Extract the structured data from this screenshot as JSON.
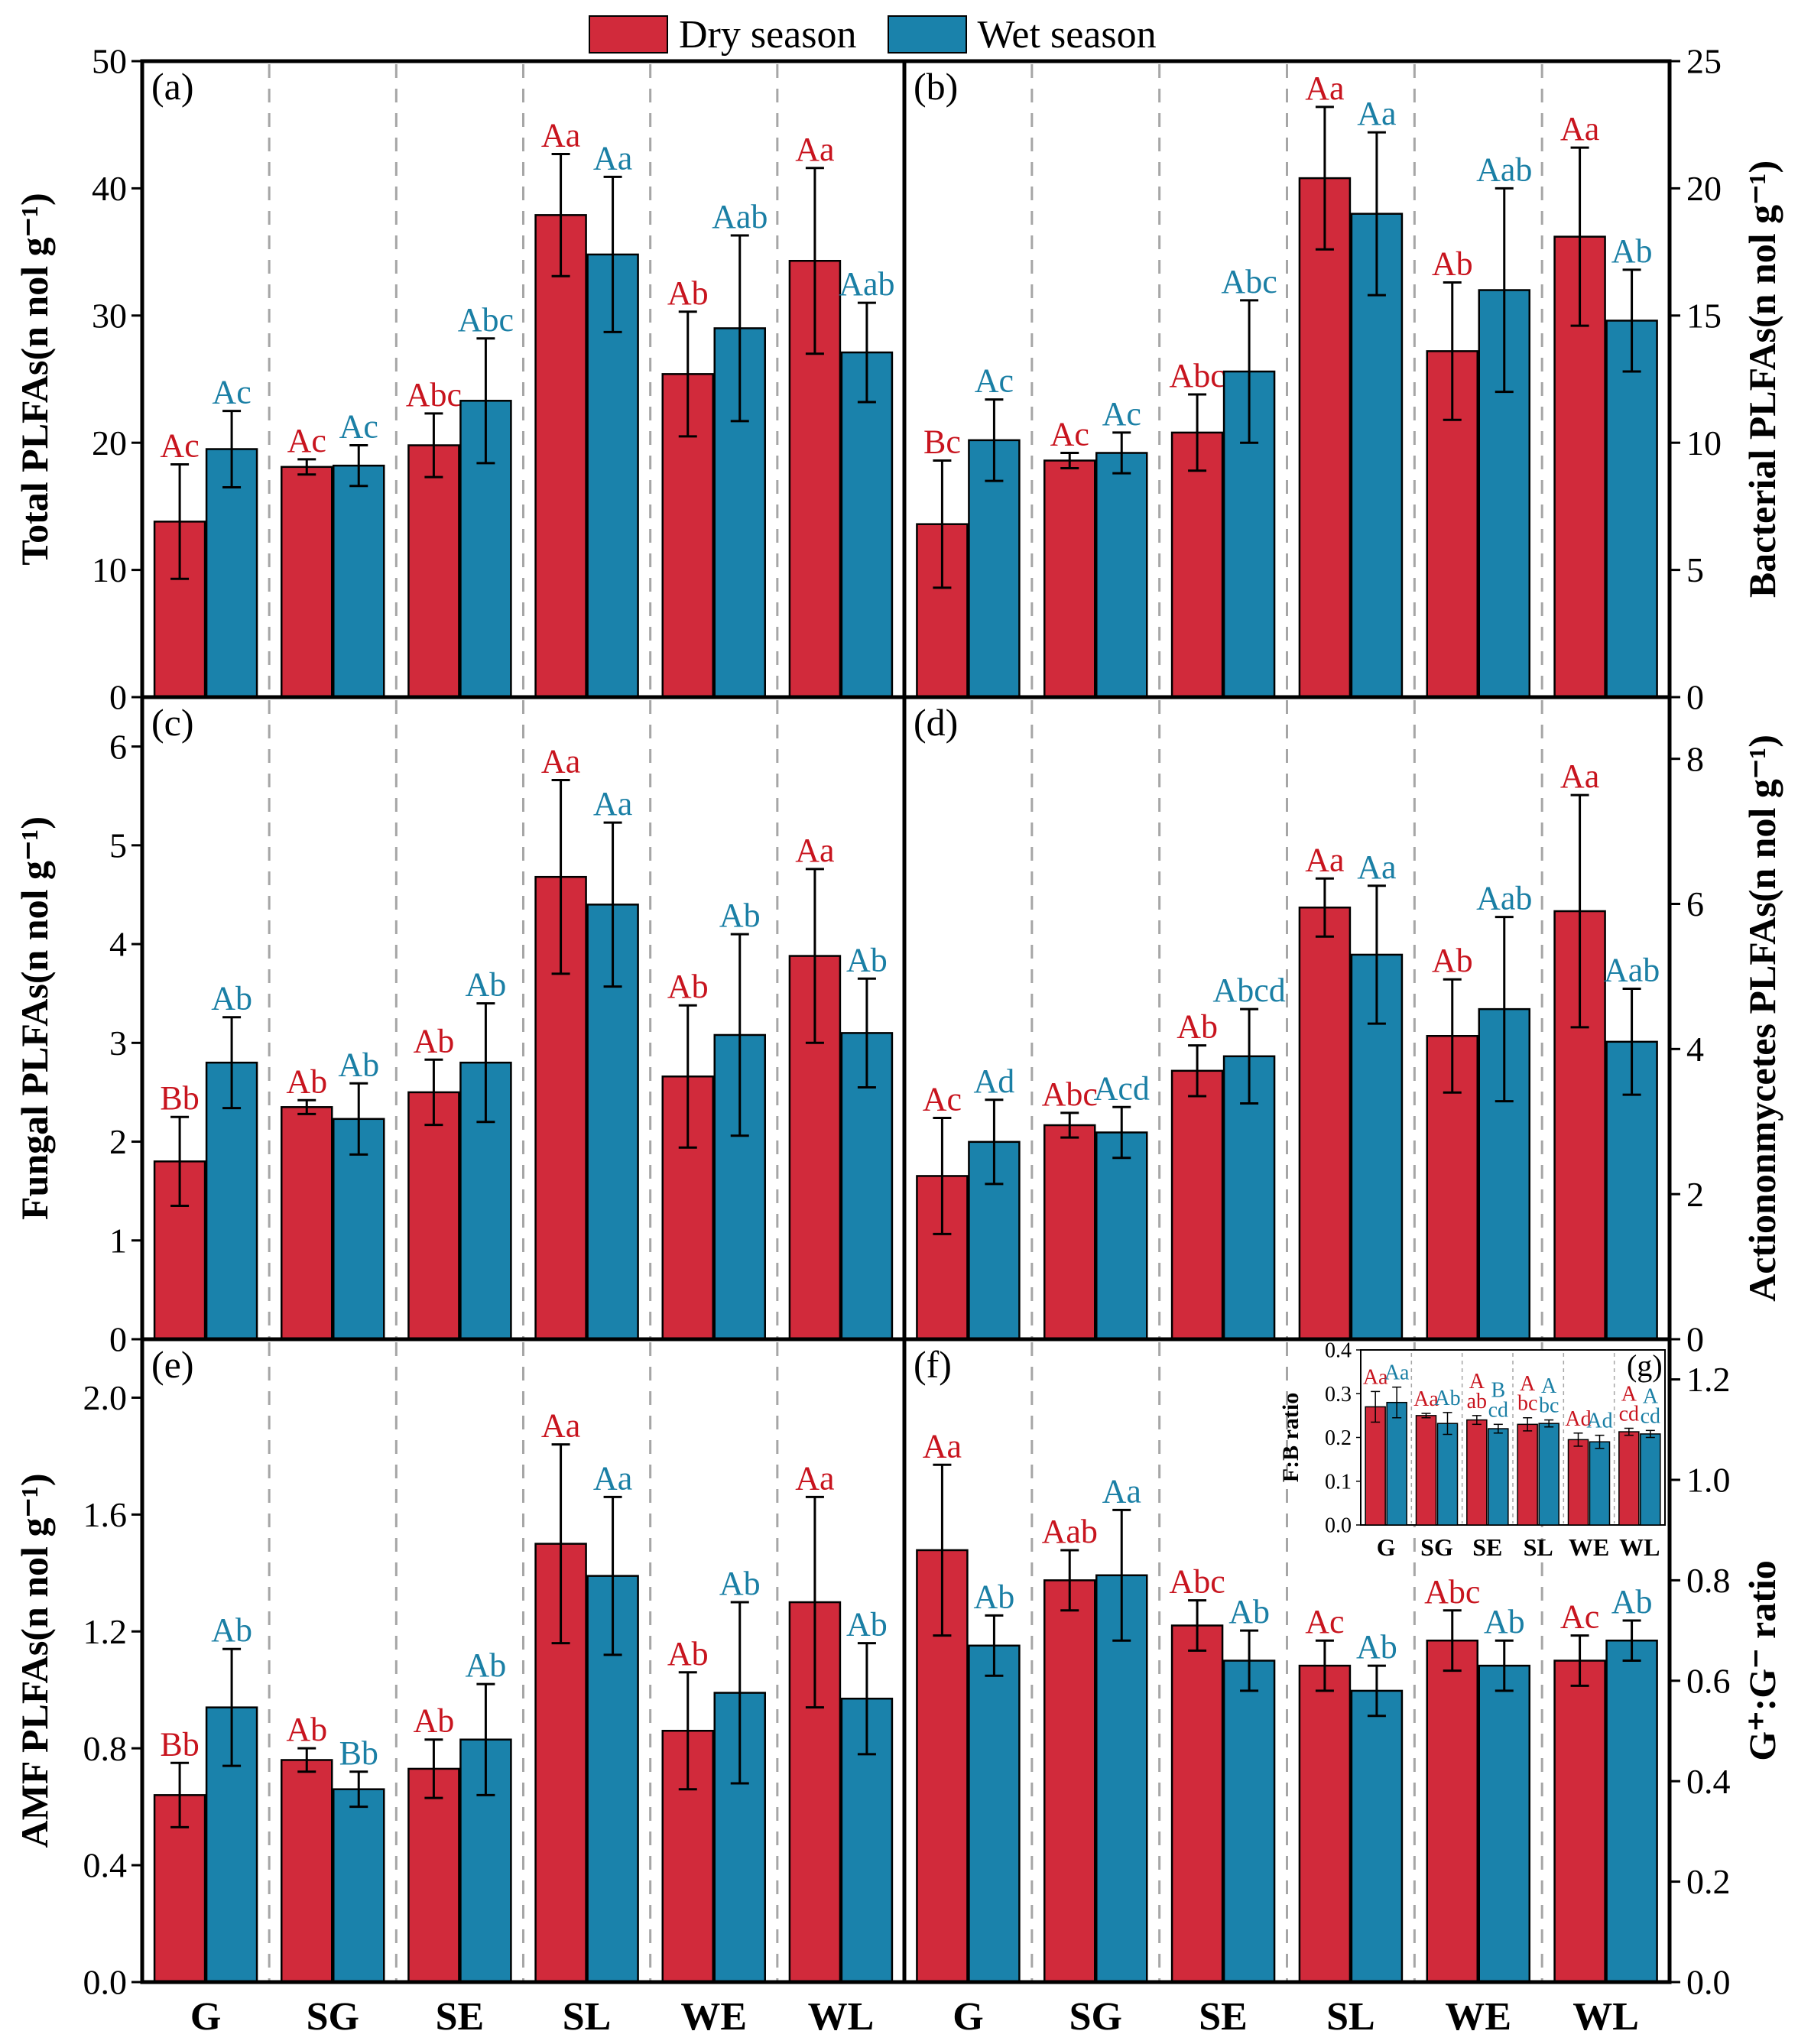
{
  "legend": {
    "dry_label": "Dry  season",
    "wet_label": "Wet season"
  },
  "colors": {
    "dry": "#d12a3b",
    "wet": "#1a82ab",
    "dry_text": "#c8141e",
    "wet_text": "#1a7fa5"
  },
  "categories": [
    "G",
    "SG",
    "SE",
    "SL",
    "WE",
    "WL"
  ],
  "chart_data": [
    {
      "panel": "a",
      "type": "bar",
      "ylabel": "Total PLFAs(n nol g⁻¹)",
      "ylim": [
        0,
        50
      ],
      "yticks": [
        0,
        10,
        20,
        30,
        40,
        50
      ],
      "axis_side": "left",
      "categories": [
        "G",
        "SG",
        "SE",
        "SL",
        "WE",
        "WL"
      ],
      "series": [
        {
          "name": "Dry season",
          "values": [
            13.8,
            18.1,
            19.8,
            37.9,
            25.4,
            34.3
          ],
          "errors": [
            4.5,
            0.6,
            2.5,
            4.8,
            4.9,
            7.3
          ],
          "letters": [
            "Ac",
            "Ac",
            "Abc",
            "Aa",
            "Ab",
            "Aa"
          ]
        },
        {
          "name": "Wet season",
          "values": [
            19.5,
            18.2,
            23.3,
            34.8,
            29.0,
            27.1
          ],
          "errors": [
            3.0,
            1.6,
            4.9,
            6.1,
            7.3,
            3.9
          ],
          "letters": [
            "Ac",
            "Ac",
            "Abc",
            "Aa",
            "Aab",
            "Aab"
          ]
        }
      ]
    },
    {
      "panel": "b",
      "type": "bar",
      "ylabel": "Bacterial PLFAs(n nol g⁻¹)",
      "ylim": [
        0,
        25
      ],
      "yticks": [
        0,
        5,
        10,
        15,
        20,
        25
      ],
      "axis_side": "right",
      "categories": [
        "G",
        "SG",
        "SE",
        "SL",
        "WE",
        "WL"
      ],
      "series": [
        {
          "name": "Dry season",
          "values": [
            6.8,
            9.3,
            10.4,
            20.4,
            13.6,
            18.1
          ],
          "errors": [
            2.5,
            0.3,
            1.5,
            2.8,
            2.7,
            3.5
          ],
          "letters": [
            "Bc",
            "Ac",
            "Abc",
            "Aa",
            "Ab",
            "Aa"
          ]
        },
        {
          "name": "Wet season",
          "values": [
            10.1,
            9.6,
            12.8,
            19.0,
            16.0,
            14.8
          ],
          "errors": [
            1.6,
            0.8,
            2.8,
            3.2,
            4.0,
            2.0
          ],
          "letters": [
            "Ac",
            "Ac",
            "Abc",
            "Aa",
            "Aab",
            "Ab"
          ]
        }
      ]
    },
    {
      "panel": "c",
      "type": "bar",
      "ylabel": "Fungal PLFAs(n nol g⁻¹)",
      "ylim": [
        0,
        6.5
      ],
      "yticks": [
        0,
        1,
        2,
        3,
        4,
        5,
        6
      ],
      "axis_side": "left",
      "categories": [
        "G",
        "SG",
        "SE",
        "SL",
        "WE",
        "WL"
      ],
      "series": [
        {
          "name": "Dry season",
          "values": [
            1.8,
            2.35,
            2.5,
            4.68,
            2.66,
            3.88
          ],
          "errors": [
            0.45,
            0.07,
            0.33,
            0.98,
            0.72,
            0.88
          ],
          "letters": [
            "Bb",
            "Ab",
            "Ab",
            "Aa",
            "Ab",
            "Aa"
          ]
        },
        {
          "name": "Wet season",
          "values": [
            2.8,
            2.23,
            2.8,
            4.4,
            3.08,
            3.1
          ],
          "errors": [
            0.46,
            0.36,
            0.6,
            0.83,
            1.02,
            0.55
          ],
          "letters": [
            "Ab",
            "Ab",
            "Ab",
            "Aa",
            "Ab",
            "Ab"
          ]
        }
      ]
    },
    {
      "panel": "d",
      "type": "bar",
      "ylabel": "Actiononmycetes PLFAs(n nol g⁻¹)",
      "ylim": [
        0,
        8.85
      ],
      "yticks": [
        0,
        2,
        4,
        6,
        8
      ],
      "axis_side": "right",
      "categories": [
        "G",
        "SG",
        "SE",
        "SL",
        "WE",
        "WL"
      ],
      "series": [
        {
          "name": "Dry season",
          "values": [
            2.25,
            2.95,
            3.7,
            5.95,
            4.18,
            5.9
          ],
          "errors": [
            0.8,
            0.17,
            0.35,
            0.4,
            0.78,
            1.6
          ],
          "letters": [
            "Ac",
            "Abc",
            "Ab",
            "Aa",
            "Ab",
            "Aa"
          ]
        },
        {
          "name": "Wet season",
          "values": [
            2.72,
            2.85,
            3.9,
            5.3,
            4.55,
            4.1
          ],
          "errors": [
            0.58,
            0.35,
            0.65,
            0.95,
            1.27,
            0.73
          ],
          "letters": [
            "Ad",
            "Acd",
            "Abcd",
            "Aa",
            "Aab",
            "Aab"
          ]
        }
      ]
    },
    {
      "panel": "e",
      "type": "bar",
      "ylabel": "AMF PLFAs(n nol g⁻¹)",
      "ylim": [
        0,
        2.2
      ],
      "yticks": [
        0.0,
        0.4,
        0.8,
        1.2,
        1.6,
        2.0
      ],
      "axis_side": "left",
      "categories": [
        "G",
        "SG",
        "SE",
        "SL",
        "WE",
        "WL"
      ],
      "series": [
        {
          "name": "Dry season",
          "values": [
            0.64,
            0.76,
            0.73,
            1.5,
            0.86,
            1.3
          ],
          "errors": [
            0.11,
            0.04,
            0.1,
            0.34,
            0.2,
            0.36
          ],
          "letters": [
            "Bb",
            "Ab",
            "Ab",
            "Aa",
            "Ab",
            "Aa"
          ]
        },
        {
          "name": "Wet season",
          "values": [
            0.94,
            0.66,
            0.83,
            1.39,
            0.99,
            0.97
          ],
          "errors": [
            0.2,
            0.06,
            0.19,
            0.27,
            0.31,
            0.19
          ],
          "letters": [
            "Ab",
            "Bb",
            "Ab",
            "Aa",
            "Ab",
            "Ab"
          ]
        }
      ]
    },
    {
      "panel": "f",
      "type": "bar",
      "ylabel": "G⁺:G⁻ ratio",
      "ylim": [
        0,
        1.28
      ],
      "yticks": [
        0.0,
        0.2,
        0.4,
        0.6,
        0.8,
        1.0,
        1.2
      ],
      "axis_side": "right",
      "categories": [
        "G",
        "SG",
        "SE",
        "SL",
        "WE",
        "WL"
      ],
      "series": [
        {
          "name": "Dry season",
          "values": [
            0.86,
            0.8,
            0.71,
            0.63,
            0.68,
            0.64
          ],
          "errors": [
            0.17,
            0.06,
            0.05,
            0.05,
            0.06,
            0.05
          ],
          "letters": [
            "Aa",
            "Aab",
            "Abc",
            "Ac",
            "Abc",
            "Ac"
          ]
        },
        {
          "name": "Wet season",
          "values": [
            0.67,
            0.81,
            0.64,
            0.58,
            0.63,
            0.68
          ],
          "errors": [
            0.06,
            0.13,
            0.06,
            0.05,
            0.05,
            0.04
          ],
          "letters": [
            "Ab",
            "Aa",
            "Ab",
            "Ab",
            "Ab",
            "Ab"
          ]
        }
      ]
    },
    {
      "panel": "g",
      "type": "bar",
      "ylabel": "F:B ratio",
      "inset": true,
      "ylim": [
        0,
        0.4
      ],
      "yticks": [
        0.0,
        0.1,
        0.2,
        0.3,
        0.4
      ],
      "axis_side": "left",
      "categories": [
        "G",
        "SG",
        "SE",
        "SL",
        "WE",
        "WL"
      ],
      "series": [
        {
          "name": "Dry season",
          "values": [
            0.27,
            0.25,
            0.24,
            0.23,
            0.195,
            0.213
          ],
          "errors": [
            0.035,
            0.005,
            0.01,
            0.015,
            0.015,
            0.008
          ],
          "letters": [
            [
              "Aa"
            ],
            [
              "Aa"
            ],
            [
              "A",
              "ab"
            ],
            [
              "A",
              "bc"
            ],
            [
              "Ad"
            ],
            [
              "A",
              "cd"
            ]
          ]
        },
        {
          "name": "Wet season",
          "values": [
            0.28,
            0.232,
            0.22,
            0.232,
            0.19,
            0.208
          ],
          "errors": [
            0.035,
            0.025,
            0.01,
            0.008,
            0.015,
            0.008
          ],
          "letters": [
            [
              "Aa"
            ],
            [
              "Ab"
            ],
            [
              "B",
              "cd"
            ],
            [
              "A",
              "bc"
            ],
            [
              "Ad"
            ],
            [
              "A",
              "cd"
            ]
          ]
        }
      ]
    }
  ]
}
